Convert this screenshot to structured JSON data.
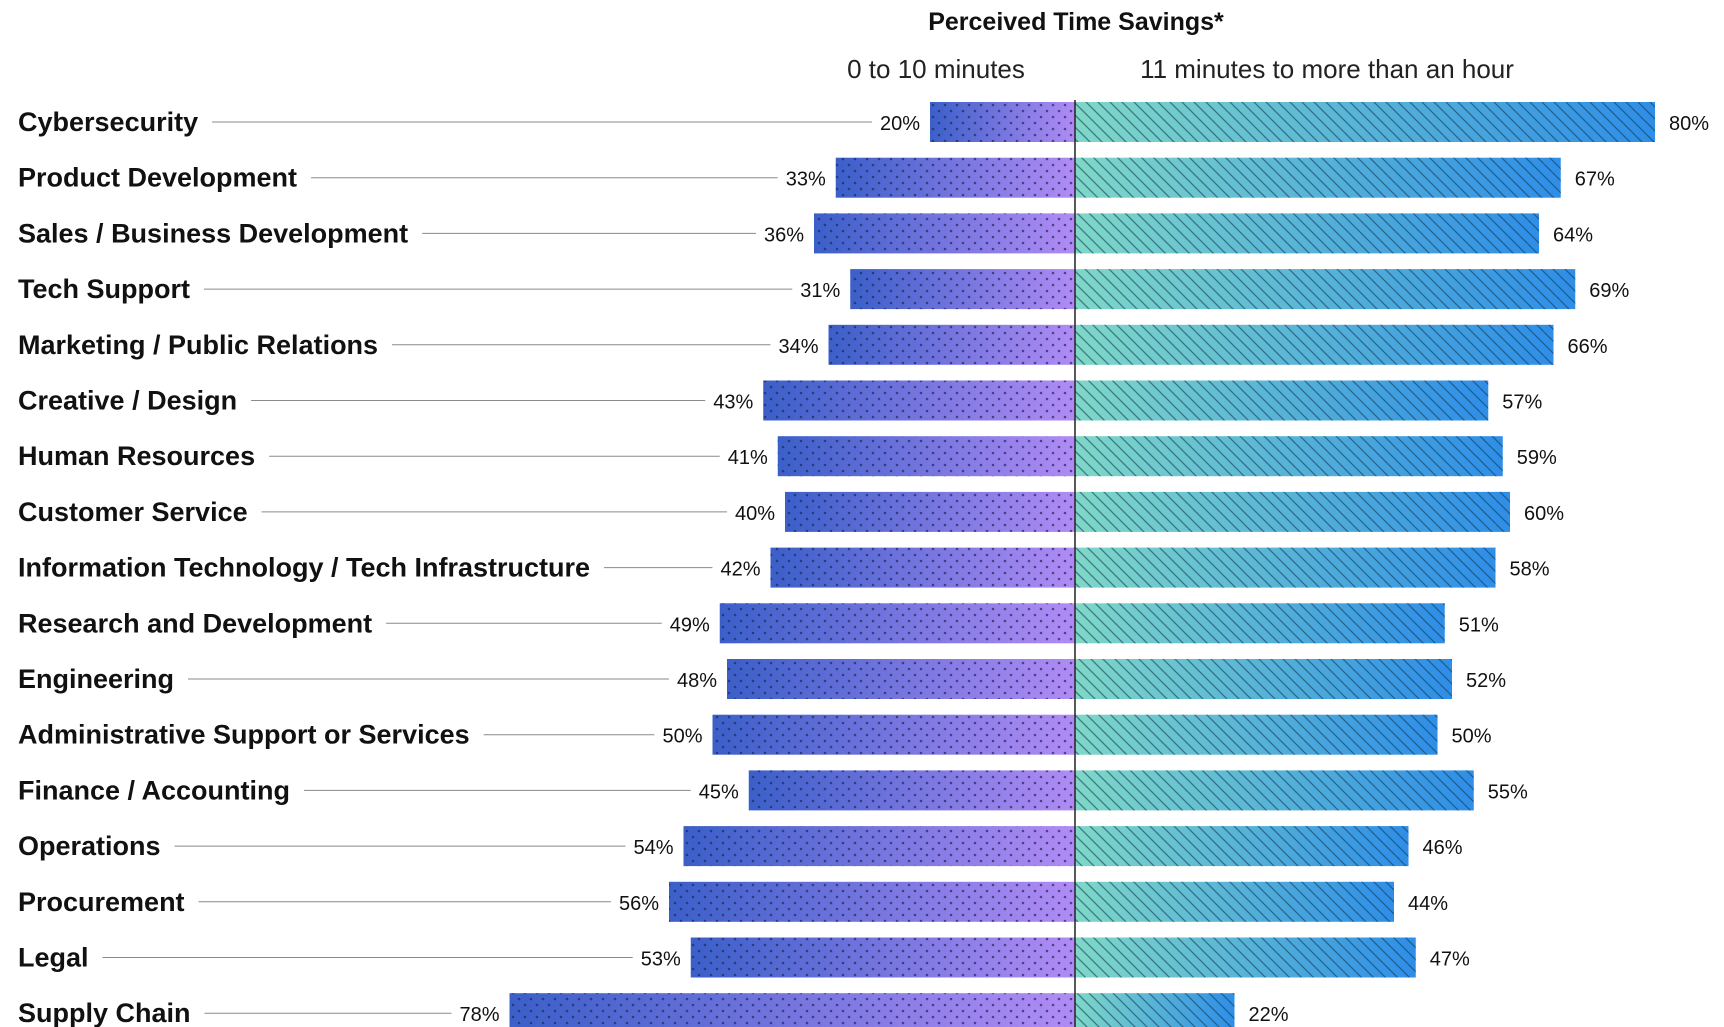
{
  "chart_data": {
    "type": "bar",
    "title": "Perceived Time Savings*",
    "series": [
      {
        "name": "0 to 10 minutes",
        "values": [
          20,
          33,
          36,
          31,
          34,
          43,
          41,
          40,
          42,
          49,
          48,
          50,
          45,
          54,
          56,
          53,
          78
        ]
      },
      {
        "name": "11 minutes to more than an hour",
        "values": [
          80,
          67,
          64,
          69,
          66,
          57,
          59,
          60,
          58,
          51,
          52,
          50,
          55,
          46,
          44,
          47,
          22
        ]
      }
    ],
    "categories": [
      "Cybersecurity",
      "Product Development",
      "Sales / Business Development",
      "Tech Support",
      "Marketing / Public Relations",
      "Creative / Design",
      "Human Resources",
      "Customer Service",
      "Information Technology / Tech Infrastructure",
      "Research and Development",
      "Engineering",
      "Administrative Support or Services",
      "Finance / Accounting",
      "Operations",
      "Procurement",
      "Legal",
      "Supply Chain"
    ],
    "value_suffix": "%",
    "orientation": "horizontal-diverging",
    "xlim": [
      -80,
      80
    ],
    "grid": false,
    "colors": {
      "left_start": "#3b5fc9",
      "left_end": "#b18bf5",
      "right_start": "#7fd8c6",
      "right_end": "#2e8ee8"
    }
  }
}
